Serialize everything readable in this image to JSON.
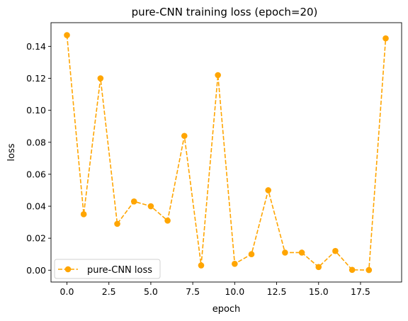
{
  "chart_data": {
    "type": "line",
    "title": "pure-CNN training loss (epoch=20)",
    "xlabel": "epoch",
    "ylabel": "loss",
    "xlim": [
      -0.95,
      19.95
    ],
    "ylim": [
      -0.0074,
      0.1548
    ],
    "xticks": [
      0.0,
      2.5,
      5.0,
      7.5,
      10.0,
      12.5,
      15.0,
      17.5
    ],
    "xtick_labels": [
      "0.0",
      "2.5",
      "5.0",
      "7.5",
      "10.0",
      "12.5",
      "15.0",
      "17.5"
    ],
    "yticks": [
      0.0,
      0.02,
      0.04,
      0.06,
      0.08,
      0.1,
      0.12,
      0.14
    ],
    "ytick_labels": [
      "0.00",
      "0.02",
      "0.04",
      "0.06",
      "0.08",
      "0.10",
      "0.12",
      "0.14"
    ],
    "grid": false,
    "legend_position": "lower-left",
    "series": [
      {
        "name": "pure-CNN loss",
        "color": "#FFA500",
        "line_style": "dashed",
        "marker": "circle",
        "x": [
          0,
          1,
          2,
          3,
          4,
          5,
          6,
          7,
          8,
          9,
          10,
          11,
          12,
          13,
          14,
          15,
          16,
          17,
          18,
          19
        ],
        "y": [
          0.147,
          0.035,
          0.12,
          0.029,
          0.043,
          0.04,
          0.031,
          0.084,
          0.003,
          0.122,
          0.004,
          0.01,
          0.05,
          0.011,
          0.011,
          0.002,
          0.012,
          0.0002,
          0.0001,
          0.145
        ]
      }
    ]
  }
}
